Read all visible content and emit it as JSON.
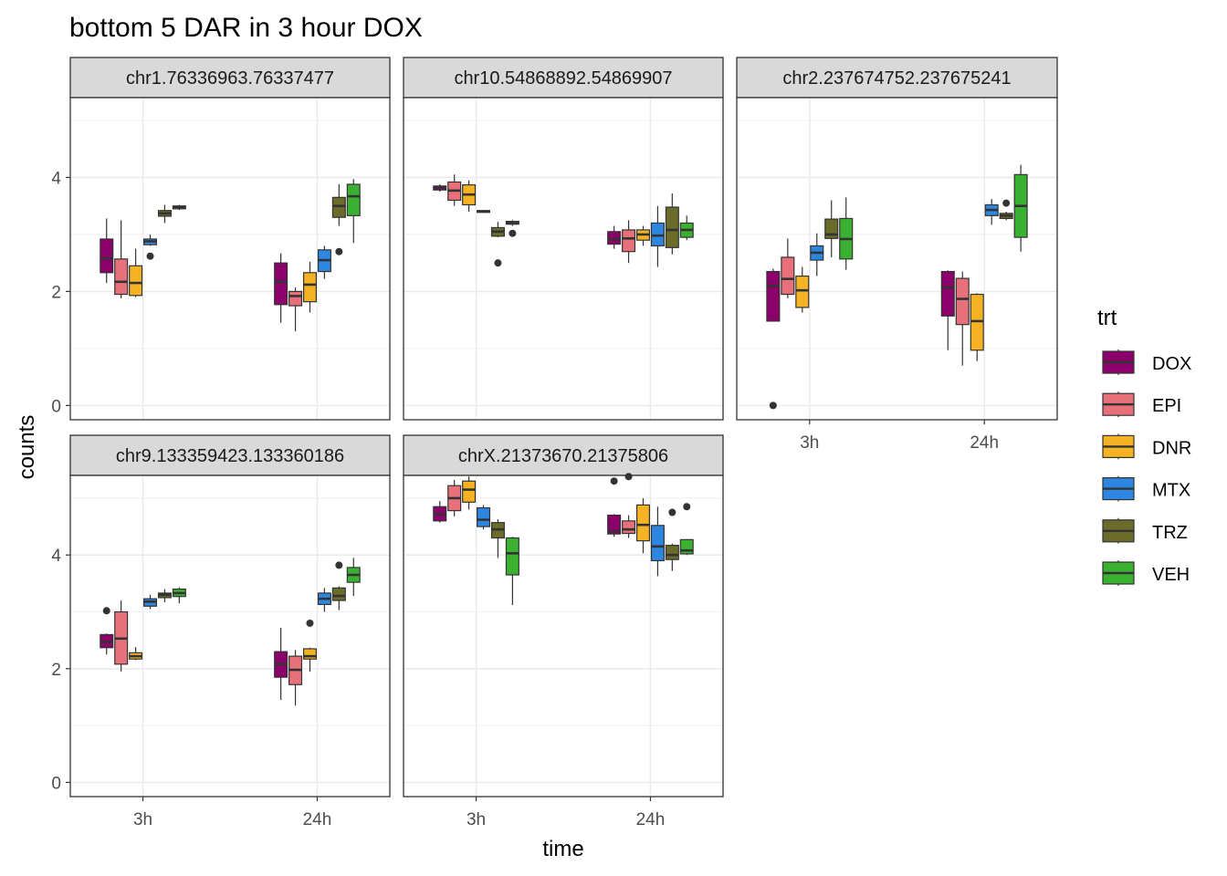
{
  "chart_data": {
    "type": "boxplot",
    "title": "bottom 5 DAR in 3 hour DOX",
    "xlabel": "time",
    "ylabel": "counts",
    "categories": [
      "3h",
      "24h"
    ],
    "ylim": [
      -0.25,
      5.4
    ],
    "yticks": [
      0,
      2,
      4
    ],
    "grid": true,
    "legend": {
      "title": "trt",
      "position": "right",
      "entries": [
        "DOX",
        "EPI",
        "DNR",
        "MTX",
        "TRZ",
        "VEH"
      ]
    },
    "colors": {
      "DOX": "#8B006B",
      "EPI": "#E8707A",
      "DNR": "#F5B324",
      "MTX": "#2D86E0",
      "TRZ": "#6B6B2A",
      "VEH": "#3BB131",
      "outline": "#333333",
      "strip_fill": "#D9D9D9",
      "grid": "#EBEBEB"
    },
    "panels": [
      {
        "label": "chr1.76336963.76337477",
        "boxes": {
          "3h": {
            "DOX": {
              "whisker_low": 2.15,
              "q1": 2.33,
              "median": 2.58,
              "q3": 2.92,
              "whisker_high": 3.28,
              "outliers": []
            },
            "EPI": {
              "whisker_low": 1.88,
              "q1": 1.95,
              "median": 2.17,
              "q3": 2.57,
              "whisker_high": 3.25,
              "outliers": []
            },
            "DNR": {
              "whisker_low": 1.9,
              "q1": 1.93,
              "median": 2.15,
              "q3": 2.45,
              "whisker_high": 2.75,
              "outliers": []
            },
            "MTX": {
              "whisker_low": 2.8,
              "q1": 2.82,
              "median": 2.88,
              "q3": 2.92,
              "whisker_high": 3.0,
              "outliers": [
                2.62
              ]
            },
            "TRZ": {
              "whisker_low": 3.2,
              "q1": 3.32,
              "median": 3.37,
              "q3": 3.42,
              "whisker_high": 3.52,
              "outliers": []
            },
            "VEH": {
              "whisker_low": 3.43,
              "q1": 3.45,
              "median": 3.48,
              "q3": 3.5,
              "whisker_high": 3.52,
              "outliers": []
            }
          },
          "24h": {
            "DOX": {
              "whisker_low": 1.45,
              "q1": 1.77,
              "median": 2.17,
              "q3": 2.5,
              "whisker_high": 2.67,
              "outliers": []
            },
            "EPI": {
              "whisker_low": 1.3,
              "q1": 1.75,
              "median": 1.92,
              "q3": 2.0,
              "whisker_high": 2.07,
              "outliers": []
            },
            "DNR": {
              "whisker_low": 1.63,
              "q1": 1.82,
              "median": 2.12,
              "q3": 2.33,
              "whisker_high": 2.52,
              "outliers": []
            },
            "MTX": {
              "whisker_low": 2.22,
              "q1": 2.35,
              "median": 2.55,
              "q3": 2.73,
              "whisker_high": 2.8,
              "outliers": []
            },
            "TRZ": {
              "whisker_low": 3.15,
              "q1": 3.3,
              "median": 3.5,
              "q3": 3.65,
              "whisker_high": 3.88,
              "outliers": [
                2.7
              ]
            },
            "VEH": {
              "whisker_low": 2.85,
              "q1": 3.33,
              "median": 3.67,
              "q3": 3.88,
              "whisker_high": 3.97,
              "outliers": []
            }
          }
        }
      },
      {
        "label": "chr10.54868892.54869907",
        "boxes": {
          "3h": {
            "DOX": {
              "whisker_low": 3.75,
              "q1": 3.78,
              "median": 3.82,
              "q3": 3.85,
              "whisker_high": 3.88,
              "outliers": []
            },
            "EPI": {
              "whisker_low": 3.5,
              "q1": 3.6,
              "median": 3.77,
              "q3": 3.92,
              "whisker_high": 4.05,
              "outliers": []
            },
            "DNR": {
              "whisker_low": 3.4,
              "q1": 3.52,
              "median": 3.7,
              "q3": 3.87,
              "whisker_high": 3.95,
              "outliers": []
            },
            "MTX": {
              "whisker_low": 3.38,
              "q1": 3.39,
              "median": 3.4,
              "q3": 3.42,
              "whisker_high": 3.43,
              "outliers": []
            },
            "TRZ": {
              "whisker_low": 2.95,
              "q1": 2.97,
              "median": 3.05,
              "q3": 3.12,
              "whisker_high": 3.22,
              "outliers": [
                2.5
              ]
            },
            "VEH": {
              "whisker_low": 3.15,
              "q1": 3.18,
              "median": 3.2,
              "q3": 3.23,
              "whisker_high": 3.25,
              "outliers": [
                3.02
              ]
            }
          },
          "24h": {
            "DOX": {
              "whisker_low": 2.75,
              "q1": 2.83,
              "median": 2.92,
              "q3": 3.05,
              "whisker_high": 3.15,
              "outliers": []
            },
            "EPI": {
              "whisker_low": 2.5,
              "q1": 2.7,
              "median": 2.93,
              "q3": 3.08,
              "whisker_high": 3.25,
              "outliers": []
            },
            "DNR": {
              "whisker_low": 2.8,
              "q1": 2.9,
              "median": 3.0,
              "q3": 3.08,
              "whisker_high": 3.15,
              "outliers": []
            },
            "MTX": {
              "whisker_low": 2.43,
              "q1": 2.8,
              "median": 2.98,
              "q3": 3.2,
              "whisker_high": 3.5,
              "outliers": []
            },
            "TRZ": {
              "whisker_low": 2.65,
              "q1": 2.77,
              "median": 3.08,
              "q3": 3.48,
              "whisker_high": 3.72,
              "outliers": []
            },
            "VEH": {
              "whisker_low": 2.9,
              "q1": 2.95,
              "median": 3.08,
              "q3": 3.2,
              "whisker_high": 3.33,
              "outliers": []
            }
          }
        }
      },
      {
        "label": "chr2.237674752.237675241",
        "boxes": {
          "3h": {
            "DOX": {
              "whisker_low": 1.48,
              "q1": 1.48,
              "median": 2.1,
              "q3": 2.35,
              "whisker_high": 2.4,
              "outliers": [
                0.0
              ]
            },
            "EPI": {
              "whisker_low": 1.88,
              "q1": 1.95,
              "median": 2.22,
              "q3": 2.6,
              "whisker_high": 2.93,
              "outliers": []
            },
            "DNR": {
              "whisker_low": 1.63,
              "q1": 1.72,
              "median": 2.02,
              "q3": 2.27,
              "whisker_high": 2.43,
              "outliers": []
            },
            "MTX": {
              "whisker_low": 2.27,
              "q1": 2.55,
              "median": 2.68,
              "q3": 2.8,
              "whisker_high": 3.02,
              "outliers": []
            },
            "TRZ": {
              "whisker_low": 2.6,
              "q1": 2.93,
              "median": 3.0,
              "q3": 3.27,
              "whisker_high": 3.6,
              "outliers": []
            },
            "VEH": {
              "whisker_low": 2.38,
              "q1": 2.57,
              "median": 2.92,
              "q3": 3.28,
              "whisker_high": 3.65,
              "outliers": []
            }
          },
          "24h": {
            "DOX": {
              "whisker_low": 0.97,
              "q1": 1.57,
              "median": 2.07,
              "q3": 2.35,
              "whisker_high": 2.37,
              "outliers": []
            },
            "EPI": {
              "whisker_low": 0.7,
              "q1": 1.42,
              "median": 1.87,
              "q3": 2.23,
              "whisker_high": 2.35,
              "outliers": []
            },
            "DNR": {
              "whisker_low": 0.78,
              "q1": 0.97,
              "median": 1.48,
              "q3": 1.95,
              "whisker_high": 1.97,
              "outliers": []
            },
            "MTX": {
              "whisker_low": 3.17,
              "q1": 3.33,
              "median": 3.43,
              "q3": 3.52,
              "whisker_high": 3.62,
              "outliers": []
            },
            "TRZ": {
              "whisker_low": 3.25,
              "q1": 3.28,
              "median": 3.33,
              "q3": 3.37,
              "whisker_high": 3.4,
              "outliers": [
                3.55
              ]
            },
            "VEH": {
              "whisker_low": 2.7,
              "q1": 2.95,
              "median": 3.5,
              "q3": 4.05,
              "whisker_high": 4.22,
              "outliers": []
            }
          }
        }
      },
      {
        "label": "chr9.133359423.133360186",
        "boxes": {
          "3h": {
            "DOX": {
              "whisker_low": 2.25,
              "q1": 2.37,
              "median": 2.47,
              "q3": 2.6,
              "whisker_high": 2.62,
              "outliers": [
                3.02
              ]
            },
            "EPI": {
              "whisker_low": 1.95,
              "q1": 2.08,
              "median": 2.53,
              "q3": 3.0,
              "whisker_high": 3.2,
              "outliers": []
            },
            "DNR": {
              "whisker_low": 2.15,
              "q1": 2.17,
              "median": 2.22,
              "q3": 2.28,
              "whisker_high": 2.38,
              "outliers": []
            },
            "MTX": {
              "whisker_low": 3.05,
              "q1": 3.1,
              "median": 3.18,
              "q3": 3.23,
              "whisker_high": 3.3,
              "outliers": []
            },
            "TRZ": {
              "whisker_low": 3.17,
              "q1": 3.25,
              "median": 3.3,
              "q3": 3.33,
              "whisker_high": 3.4,
              "outliers": []
            },
            "VEH": {
              "whisker_low": 3.15,
              "q1": 3.27,
              "median": 3.33,
              "q3": 3.4,
              "whisker_high": 3.43,
              "outliers": []
            }
          },
          "24h": {
            "DOX": {
              "whisker_low": 1.45,
              "q1": 1.85,
              "median": 2.08,
              "q3": 2.3,
              "whisker_high": 2.72,
              "outliers": []
            },
            "EPI": {
              "whisker_low": 1.35,
              "q1": 1.72,
              "median": 1.98,
              "q3": 2.22,
              "whisker_high": 2.33,
              "outliers": []
            },
            "DNR": {
              "whisker_low": 1.95,
              "q1": 2.17,
              "median": 2.22,
              "q3": 2.35,
              "whisker_high": 2.37,
              "outliers": [
                2.8
              ]
            },
            "MTX": {
              "whisker_low": 3.0,
              "q1": 3.13,
              "median": 3.23,
              "q3": 3.33,
              "whisker_high": 3.42,
              "outliers": []
            },
            "TRZ": {
              "whisker_low": 3.03,
              "q1": 3.2,
              "median": 3.28,
              "q3": 3.42,
              "whisker_high": 3.45,
              "outliers": [
                3.82
              ]
            },
            "VEH": {
              "whisker_low": 3.28,
              "q1": 3.52,
              "median": 3.65,
              "q3": 3.78,
              "whisker_high": 3.95,
              "outliers": []
            }
          }
        }
      },
      {
        "label": "chrX.21373670.21375806",
        "boxes": {
          "3h": {
            "DOX": {
              "whisker_low": 4.57,
              "q1": 4.6,
              "median": 4.72,
              "q3": 4.85,
              "whisker_high": 4.95,
              "outliers": []
            },
            "EPI": {
              "whisker_low": 4.68,
              "q1": 4.78,
              "median": 5.0,
              "q3": 5.22,
              "whisker_high": 5.32,
              "outliers": []
            },
            "DNR": {
              "whisker_low": 4.8,
              "q1": 4.93,
              "median": 5.15,
              "q3": 5.3,
              "whisker_high": 5.38,
              "outliers": []
            },
            "MTX": {
              "whisker_low": 4.45,
              "q1": 4.5,
              "median": 4.62,
              "q3": 4.83,
              "whisker_high": 4.88,
              "outliers": []
            },
            "TRZ": {
              "whisker_low": 3.95,
              "q1": 4.3,
              "median": 4.45,
              "q3": 4.57,
              "whisker_high": 4.63,
              "outliers": []
            },
            "VEH": {
              "whisker_low": 3.12,
              "q1": 3.65,
              "median": 4.03,
              "q3": 4.3,
              "whisker_high": 4.32,
              "outliers": []
            }
          },
          "24h": {
            "DOX": {
              "whisker_low": 4.32,
              "q1": 4.37,
              "median": 4.42,
              "q3": 4.7,
              "whisker_high": 4.72,
              "outliers": [
                5.3
              ]
            },
            "EPI": {
              "whisker_low": 4.3,
              "q1": 4.38,
              "median": 4.45,
              "q3": 4.6,
              "whisker_high": 4.7,
              "outliers": [
                5.38
              ]
            },
            "DNR": {
              "whisker_low": 4.03,
              "q1": 4.25,
              "median": 4.53,
              "q3": 4.88,
              "whisker_high": 5.0,
              "outliers": []
            },
            "MTX": {
              "whisker_low": 3.63,
              "q1": 3.9,
              "median": 4.15,
              "q3": 4.52,
              "whisker_high": 4.85,
              "outliers": []
            },
            "TRZ": {
              "whisker_low": 3.72,
              "q1": 3.92,
              "median": 4.0,
              "q3": 4.17,
              "whisker_high": 4.2,
              "outliers": [
                4.75
              ]
            },
            "VEH": {
              "whisker_low": 4.0,
              "q1": 4.02,
              "median": 4.08,
              "q3": 4.27,
              "whisker_high": 4.28,
              "outliers": [
                4.85
              ]
            }
          }
        }
      }
    ]
  }
}
